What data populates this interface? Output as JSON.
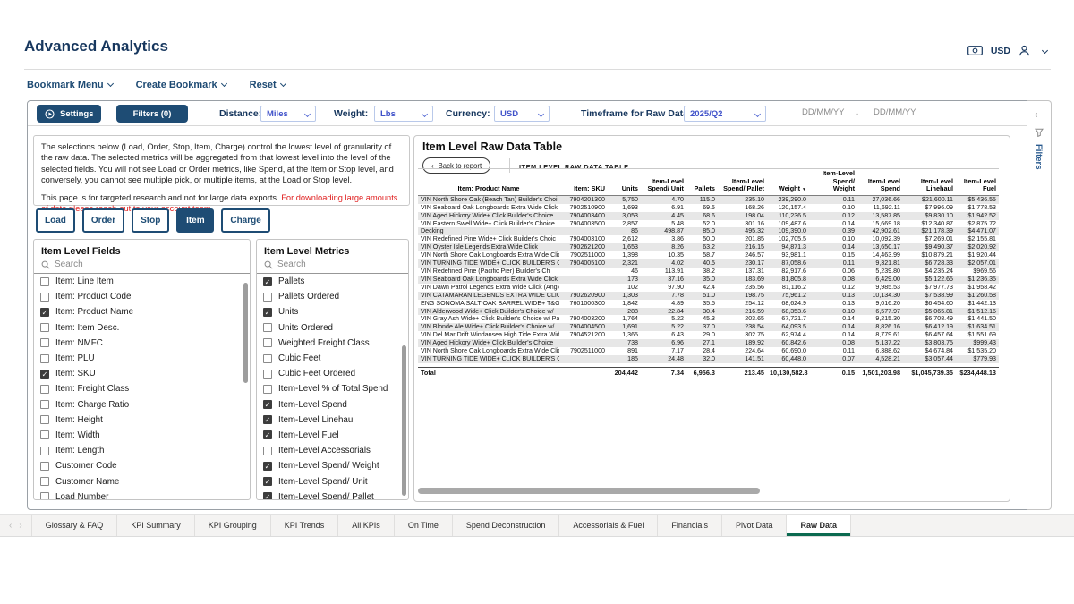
{
  "header": {
    "title": "Advanced Analytics",
    "currency_badge": "USD"
  },
  "bookmark_bar": {
    "items": [
      "Bookmark Menu",
      "Create Bookmark",
      "Reset"
    ]
  },
  "toolbar": {
    "settings_label": "Settings",
    "filters_label": "Filters (0)",
    "distance_label": "Distance:",
    "distance_value": "Miles",
    "weight_label": "Weight:",
    "weight_value": "Lbs",
    "currency_label": "Currency:",
    "currency_value": "USD",
    "timeframe_label": "Timeframe for Raw Data:",
    "timeframe_value": "2025/Q2",
    "date_from_placeholder": "DD/MM/YY",
    "date_separator": "-",
    "date_to_placeholder": "DD/MM/YY"
  },
  "info_panel": {
    "paragraph1": "The selections below (Load, Order, Stop, Item, Charge) control the lowest level of granularity of the raw data.  The selected metrics will be aggregated from that lowest level into the level of the selected fields. You will not see Load or Order metrics, like Spend, at the Item or Stop level, and conversely, you cannot see multiple pick, or multiple items, at the Load or Stop level.",
    "paragraph2_black": "This page is for targeted research and not for large data exports.  ",
    "paragraph2_red": "For downloading large amounts of data please reach-out to your account team."
  },
  "level_buttons": [
    {
      "label": "Load",
      "active": false
    },
    {
      "label": "Order",
      "active": false
    },
    {
      "label": "Stop",
      "active": false
    },
    {
      "label": "Item",
      "active": true
    },
    {
      "label": "Charge",
      "active": false
    }
  ],
  "fields_panel": {
    "title": "Item Level Fields",
    "search_placeholder": "Search",
    "items": [
      {
        "label": "Item: Line Item",
        "checked": false
      },
      {
        "label": "Item: Product Code",
        "checked": false
      },
      {
        "label": "Item: Product Name",
        "checked": true
      },
      {
        "label": "Item: Item Desc.",
        "checked": false
      },
      {
        "label": "Item: NMFC",
        "checked": false
      },
      {
        "label": "Item: PLU",
        "checked": false
      },
      {
        "label": "Item: SKU",
        "checked": true
      },
      {
        "label": "Item: Freight Class",
        "checked": false
      },
      {
        "label": "Item: Charge Ratio",
        "checked": false
      },
      {
        "label": "Item: Height",
        "checked": false
      },
      {
        "label": "Item: Width",
        "checked": false
      },
      {
        "label": "Item: Length",
        "checked": false
      },
      {
        "label": "Customer Code",
        "checked": false
      },
      {
        "label": "Customer Name",
        "checked": false
      },
      {
        "label": "Load Number",
        "checked": false
      }
    ]
  },
  "metrics_panel": {
    "title": "Item Level Metrics",
    "search_placeholder": "Search",
    "items": [
      {
        "label": "Pallets",
        "checked": true
      },
      {
        "label": "Pallets Ordered",
        "checked": false
      },
      {
        "label": "Units",
        "checked": true
      },
      {
        "label": "Units Ordered",
        "checked": false
      },
      {
        "label": "Weighted Freight Class",
        "checked": false
      },
      {
        "label": "Cubic Feet",
        "checked": false
      },
      {
        "label": "Cubic Feet Ordered",
        "checked": false
      },
      {
        "label": "Item-Level % of Total Spend",
        "checked": false
      },
      {
        "label": "Item-Level Spend",
        "checked": true
      },
      {
        "label": "Item-Level Linehaul",
        "checked": true
      },
      {
        "label": "Item-Level Fuel",
        "checked": true
      },
      {
        "label": "Item-Level Accessorials",
        "checked": false
      },
      {
        "label": "Item-Level Spend/ Weight",
        "checked": true
      },
      {
        "label": "Item-Level Spend/ Unit",
        "checked": true
      },
      {
        "label": "Item-Level Spend/ Pallet",
        "checked": true
      }
    ]
  },
  "table_panel": {
    "title": "Item Level Raw Data Table",
    "back_button": "Back to report",
    "breadcrumb": "ITEM LEVEL RAW DATA TABLE",
    "columns": [
      {
        "label": "Item: Product Name",
        "sorted": false
      },
      {
        "label": "Item: SKU",
        "sorted": false
      },
      {
        "label": "Units",
        "sorted": false
      },
      {
        "label": "Item-Level Spend/ Unit",
        "sorted": false
      },
      {
        "label": "Pallets",
        "sorted": false
      },
      {
        "label": "Item-Level Spend/ Pallet",
        "sorted": false
      },
      {
        "label": "Weight",
        "sorted": true
      },
      {
        "label": "Item-Level Spend/ Weight",
        "sorted": false
      },
      {
        "label": "Item-Level Spend",
        "sorted": false
      },
      {
        "label": "Item-Level Linehaul",
        "sorted": false
      },
      {
        "label": "Item-Level Fuel",
        "sorted": false
      }
    ],
    "rows": [
      [
        "VIN North Shore Oak (Beach Tan) Builder's Choi",
        "7904201300",
        "5,750",
        "4.70",
        "115.0",
        "235.10",
        "239,290.0",
        "0.11",
        "27,036.66",
        "$21,600.11",
        "$5,436.55"
      ],
      [
        "VIN Seaboard Oak Longboards Extra Wide Click",
        "7902510900",
        "1,693",
        "6.91",
        "69.5",
        "168.26",
        "120,157.4",
        "0.10",
        "11,692.11",
        "$7,996.09",
        "$1,778.53"
      ],
      [
        "VIN Aged Hickory Wide+ Click Builder's Choice",
        "7904003400",
        "3,053",
        "4.45",
        "68.6",
        "198.04",
        "110,236.5",
        "0.12",
        "13,587.85",
        "$9,830.10",
        "$1,942.52"
      ],
      [
        "VIN Eastern Swell Wide+ Click Builder's Choice",
        "7904003500",
        "2,857",
        "5.48",
        "52.0",
        "301.16",
        "109,487.6",
        "0.14",
        "15,669.18",
        "$12,340.87",
        "$2,875.72"
      ],
      [
        "Decking",
        "",
        "86",
        "498.87",
        "85.0",
        "495.32",
        "109,390.0",
        "0.39",
        "42,902.61",
        "$21,178.39",
        "$4,471.07"
      ],
      [
        "VIN Redefined Pine Wide+ Click Builder's Choic",
        "7904003100",
        "2,612",
        "3.86",
        "50.0",
        "201.85",
        "102,705.5",
        "0.10",
        "10,092.39",
        "$7,269.01",
        "$2,155.81"
      ],
      [
        "VIN Oyster Isle Legends Extra Wide Click",
        "7902621200",
        "1,653",
        "8.26",
        "63.2",
        "216.15",
        "94,871.3",
        "0.14",
        "13,650.17",
        "$9,490.37",
        "$2,020.92"
      ],
      [
        "VIN North Shore Oak Longboards Extra Wide Click",
        "7902511000",
        "1,398",
        "10.35",
        "58.7",
        "246.57",
        "93,981.1",
        "0.15",
        "14,463.99",
        "$10,879.21",
        "$1,920.44"
      ],
      [
        "VIN TURNING TIDE WIDE+ CLICK BUILDER'S CHOICE",
        "7904005100",
        "2,321",
        "4.02",
        "40.5",
        "230.17",
        "87,058.6",
        "0.11",
        "9,321.81",
        "$6,728.33",
        "$2,057.01"
      ],
      [
        "VIN Redefined Pine (Pacific Pier) Builder's Ch",
        "",
        "46",
        "113.91",
        "38.2",
        "137.31",
        "82,917.6",
        "0.06",
        "5,239.80",
        "$4,235.24",
        "$969.56"
      ],
      [
        "VIN Seaboard Oak Longboards Extra Wide Click (Angl",
        "",
        "173",
        "37.16",
        "35.0",
        "183.69",
        "81,805.8",
        "0.08",
        "6,429.00",
        "$5,122.65",
        "$1,236.35"
      ],
      [
        "VIN Dawn Patrol Legends Extra Wide Click (Angle-An",
        "",
        "102",
        "97.90",
        "42.4",
        "235.56",
        "81,116.2",
        "0.12",
        "9,985.53",
        "$7,977.73",
        "$1,958.42"
      ],
      [
        "VIN CATAMARAN LEGENDS EXTRA WIDE CLICK",
        "7902620900",
        "1,303",
        "7.78",
        "51.0",
        "198.75",
        "75,961.2",
        "0.13",
        "10,134.30",
        "$7,538.99",
        "$1,260.58"
      ],
      [
        "ENG SONOMA SALT OAK BARREL WIDE+ T&G",
        "7601000300",
        "1,842",
        "4.89",
        "35.5",
        "254.12",
        "68,624.9",
        "0.13",
        "9,016.20",
        "$6,454.60",
        "$1,442.13"
      ],
      [
        "VIN Alderwood Wide+ Click Builder's Choice w/",
        "",
        "288",
        "22.84",
        "30.4",
        "216.59",
        "68,353.6",
        "0.10",
        "6,577.97",
        "$5,065.81",
        "$1,512.16"
      ],
      [
        "VIN Gray Ash Wide+ Click Builder's Choice w/ Pad",
        "7904003200",
        "1,764",
        "5.22",
        "45.3",
        "203.65",
        "67,721.7",
        "0.14",
        "9,215.30",
        "$6,708.49",
        "$1,441.50"
      ],
      [
        "VIN Blonde Ale Wide+ Click Builder's Choice w/",
        "7904004500",
        "1,691",
        "5.22",
        "37.0",
        "238.54",
        "64,093.5",
        "0.14",
        "8,826.16",
        "$6,412.19",
        "$1,634.51"
      ],
      [
        "VIN Del Mar Drift Windansea High Tide Extra Wide C",
        "7904521200",
        "1,365",
        "6.43",
        "29.0",
        "302.75",
        "62,974.4",
        "0.14",
        "8,779.61",
        "$6,457.64",
        "$1,551.69"
      ],
      [
        "VIN Aged Hickory Wide+ Click Builder's Choice",
        "",
        "738",
        "6.96",
        "27.1",
        "189.92",
        "60,842.6",
        "0.08",
        "5,137.22",
        "$3,803.75",
        "$999.43"
      ],
      [
        "VIN North Shore Oak Longboards Extra Wide Click (A",
        "7902511000",
        "891",
        "7.17",
        "28.4",
        "224.64",
        "60,690.0",
        "0.11",
        "6,388.62",
        "$4,674.84",
        "$1,535.20"
      ],
      [
        "VIN TURNING TIDE WIDE+ CLICK BUILDER'S CHOICE",
        "",
        "185",
        "24.48",
        "32.0",
        "141.51",
        "60,448.0",
        "0.07",
        "4,528.21",
        "$3,057.44",
        "$779.93"
      ]
    ],
    "total": [
      "Total",
      "",
      "204,442",
      "7.34",
      "6,956.3",
      "213.45",
      "10,130,582.8",
      "0.15",
      "1,501,203.98",
      "$1,045,739.35",
      "$234,448.13"
    ]
  },
  "filters_pane": {
    "label": "Filters"
  },
  "bottom_tabs": {
    "tabs": [
      "Glossary & FAQ",
      "KPI Summary",
      "KPI Grouping",
      "KPI Trends",
      "All KPIs",
      "On Time",
      "Spend Deconstruction",
      "Accessorials & Fuel",
      "Financials",
      "Pivot Data",
      "Raw Data"
    ],
    "active": "Raw Data"
  },
  "colors": {
    "navy": "#1e4c74",
    "heading_navy": "#17375e",
    "dropdown_blue": "#3f51c9",
    "warning_red": "#e02020",
    "row_stripe": "#e7e7e7",
    "active_tab_underline": "#0b6a50"
  }
}
